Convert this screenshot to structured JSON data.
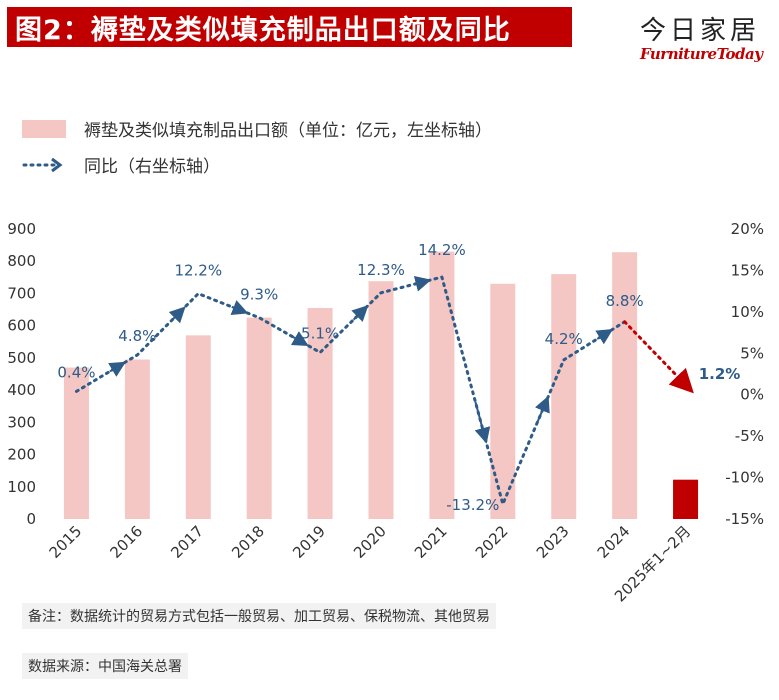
{
  "header": {
    "title": "图2：褥垫及类似填充制品出口额及同比",
    "brand_cn": "今日家居",
    "brand_en": "FurnitureToday"
  },
  "legend": {
    "bar_label": "褥垫及类似填充制品出口额（单位：亿元，左坐标轴）",
    "line_label": "同比（右坐标轴）"
  },
  "footer": {
    "note": "备注：数据统计的贸易方式包括一般贸易、加工贸易、保税物流、其他贸易",
    "source": "数据来源：中国海关总署"
  },
  "colors": {
    "bar": "#f5c7c4",
    "bar_highlight": "#c00000",
    "line": "#2e5b88",
    "line_forecast": "#c00000"
  },
  "chart_data": {
    "type": "bar",
    "categories": [
      "2015",
      "2016",
      "2017",
      "2018",
      "2019",
      "2020",
      "2021",
      "2022",
      "2023",
      "2024",
      "2025年1~2月"
    ],
    "left_axis": {
      "ylim": [
        0,
        900
      ],
      "ticks": [
        0,
        100,
        200,
        300,
        400,
        500,
        600,
        700,
        800,
        900
      ]
    },
    "right_axis": {
      "ylim": [
        -15,
        20
      ],
      "ticks": [
        "-15%",
        "-10%",
        "-5%",
        "0%",
        "5%",
        "10%",
        "15%",
        "20%"
      ],
      "tick_values": [
        -15,
        -10,
        -5,
        0,
        5,
        10,
        15,
        20
      ]
    },
    "series": [
      {
        "name": "褥垫及类似填充制品出口额（单位：亿元，左坐标轴）",
        "kind": "bar",
        "axis": "left",
        "values": [
          470,
          495,
          570,
          625,
          655,
          738,
          830,
          730,
          760,
          828,
          122
        ]
      },
      {
        "name": "同比（右坐标轴）",
        "kind": "line",
        "axis": "right",
        "values": [
          0.4,
          4.8,
          12.2,
          9.3,
          5.1,
          12.3,
          14.2,
          -13.2,
          4.2,
          8.8,
          1.2
        ],
        "labels": [
          "0.4%",
          "4.8%",
          "12.2%",
          "9.3%",
          "5.1%",
          "12.3%",
          "14.2%",
          "-13.2%",
          "4.2%",
          "8.8%",
          "1.2%"
        ]
      }
    ],
    "grid": false,
    "legend_position": "top-left"
  }
}
